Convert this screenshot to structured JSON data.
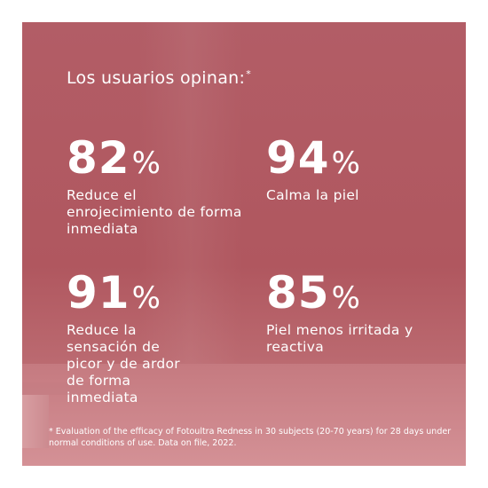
{
  "title": "Los usuarios opinan:",
  "title_marker": "*",
  "stats": [
    {
      "value": "82",
      "unit": "%",
      "label": "Reduce el enrojecimiento de forma inmediata"
    },
    {
      "value": "94",
      "unit": "%",
      "label": "Calma la piel"
    },
    {
      "value": "91",
      "unit": "%",
      "label": "Reduce la sensación de picor y de ardor de forma inmediata"
    },
    {
      "value": "85",
      "unit": "%",
      "label": "Piel menos irritada y reactiva"
    }
  ],
  "footnote": "* Evaluation of the efficacy of Fotoultra Redness in 30 subjects (20-70 years) for 28 days under normal conditions of use. Data on file, 2022.",
  "colors": {
    "background": "#b0575f",
    "text": "#ffffff"
  }
}
